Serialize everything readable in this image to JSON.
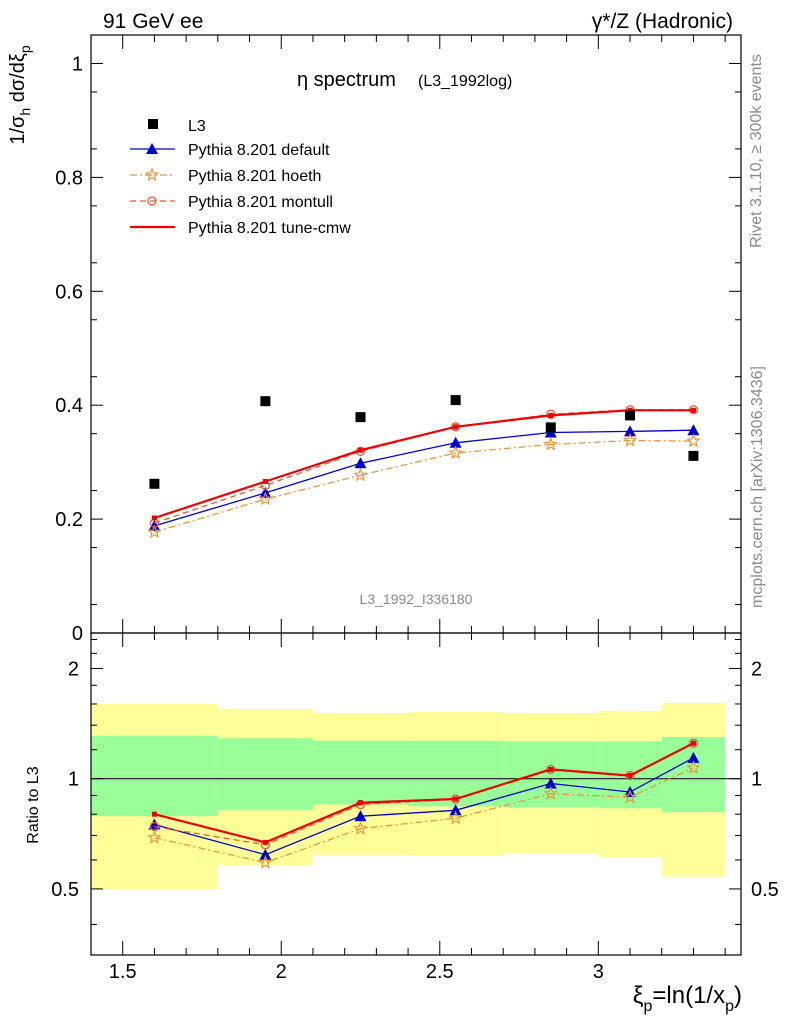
{
  "header": {
    "left": "91 GeV ee",
    "right": "γ*/Z (Hadronic)"
  },
  "side_labels": {
    "rivet": "Rivet 3.1.10, ≥ 300k events",
    "mcplots": "mcplots.cern.ch [arXiv:1306.3436]"
  },
  "chart_data": {
    "type": "line",
    "title_main": "η spectrum",
    "title_sub": "(L3_1992log)",
    "watermark": "L3_1992_I336180",
    "xlabel": "ξ_p=ln(1/x_p)",
    "ylabel": "1/σ_h dσ/dξ_p",
    "ratio_ylabel": "Ratio to L3",
    "xlim": [
      1.4,
      3.45
    ],
    "ylim": [
      0,
      1.05
    ],
    "ratio_ylim": [
      0.33,
      2.5
    ],
    "x_ticks": [
      "1.5",
      "2",
      "2.5",
      "3"
    ],
    "y_ticks": [
      "0",
      "0.2",
      "0.4",
      "0.6",
      "0.8",
      "1"
    ],
    "ratio_ticks": [
      "0.5",
      "1",
      "2"
    ],
    "x": [
      1.6,
      1.95,
      2.25,
      2.55,
      2.85,
      3.1,
      3.3
    ],
    "data": {
      "name": "L3",
      "values": [
        0.262,
        0.407,
        0.379,
        0.409,
        0.361,
        0.382,
        0.311
      ]
    },
    "data_bin_edges": [
      1.4,
      1.8,
      2.1,
      2.4,
      2.7,
      3.0,
      3.2,
      3.4
    ],
    "band_outer_lo": [
      0.5,
      0.58,
      0.62,
      0.615,
      0.625,
      0.61,
      0.54
    ],
    "band_outer_hi": [
      1.6,
      1.55,
      1.51,
      1.52,
      1.51,
      1.53,
      1.61
    ],
    "band_inner_lo": [
      0.79,
      0.82,
      0.85,
      0.84,
      0.835,
      0.83,
      0.81
    ],
    "band_inner_hi": [
      1.31,
      1.29,
      1.27,
      1.27,
      1.265,
      1.265,
      1.3
    ],
    "series": [
      {
        "name": "Pythia 8.201 default",
        "color": "#0000cc",
        "marker": "triangle",
        "dash": "solid",
        "values": [
          0.188,
          0.246,
          0.298,
          0.334,
          0.352,
          0.354,
          0.356
        ],
        "ratio": [
          0.75,
          0.62,
          0.79,
          0.82,
          0.97,
          0.92,
          1.14
        ]
      },
      {
        "name": "Pythia 8.201 hoeth",
        "color": "#e8963c",
        "marker": "star",
        "dash": "dashdot",
        "values": [
          0.177,
          0.235,
          0.277,
          0.316,
          0.331,
          0.338,
          0.337
        ],
        "ratio": [
          0.69,
          0.59,
          0.73,
          0.78,
          0.91,
          0.89,
          1.07
        ]
      },
      {
        "name": "Pythia 8.201 montull",
        "color": "#e8583c",
        "marker": "circle",
        "dash": "dashed",
        "values": [
          0.193,
          0.259,
          0.319,
          0.362,
          0.384,
          0.392,
          0.392
        ],
        "ratio": [
          0.74,
          0.66,
          0.85,
          0.88,
          1.06,
          1.02,
          1.25
        ]
      },
      {
        "name": "Pythia 8.201 tune-cmw",
        "color": "#ee0000",
        "marker": "none",
        "dash": "solid",
        "values": [
          0.202,
          0.266,
          0.321,
          0.362,
          0.382,
          0.391,
          0.391
        ],
        "ratio": [
          0.8,
          0.67,
          0.86,
          0.88,
          1.06,
          1.02,
          1.25
        ]
      }
    ],
    "colors": {
      "band_outer": "#ffff99",
      "band_inner": "#99ff99",
      "data": "#000000"
    }
  }
}
